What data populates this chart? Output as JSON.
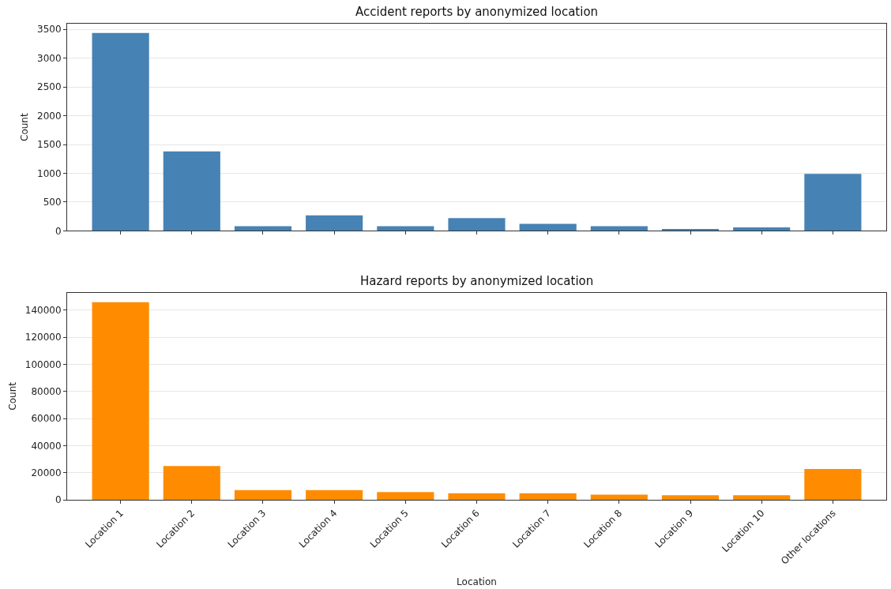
{
  "chart_data": [
    {
      "type": "bar",
      "title": "Accident reports by anonymized location",
      "ylabel": "Count",
      "categories": [
        "Location 1",
        "Location 2",
        "Location 3",
        "Location 4",
        "Location 5",
        "Location 6",
        "Location 7",
        "Location 8",
        "Location 9",
        "Location 10",
        "Other locations"
      ],
      "values": [
        3440,
        1380,
        80,
        270,
        80,
        220,
        120,
        80,
        30,
        60,
        990
      ],
      "color": "#4682b4",
      "ylim": [
        0,
        3600
      ],
      "yticks": [
        0,
        500,
        1000,
        1500,
        2000,
        2500,
        3000,
        3500
      ],
      "grid": "y",
      "tick_labels": "y"
    },
    {
      "type": "bar",
      "title": "Hazard reports by anonymized location",
      "xlabel": "Location",
      "ylabel": "Count",
      "categories": [
        "Location 1",
        "Location 2",
        "Location 3",
        "Location 4",
        "Location 5",
        "Location 6",
        "Location 7",
        "Location 8",
        "Location 9",
        "Location 10",
        "Other locations"
      ],
      "values": [
        146000,
        25000,
        7200,
        7200,
        5700,
        4800,
        4800,
        3800,
        3300,
        3300,
        22700
      ],
      "color": "#ff8c00",
      "ylim": [
        0,
        153000
      ],
      "yticks": [
        0,
        20000,
        40000,
        60000,
        80000,
        100000,
        120000,
        140000
      ],
      "grid": "y"
    }
  ]
}
